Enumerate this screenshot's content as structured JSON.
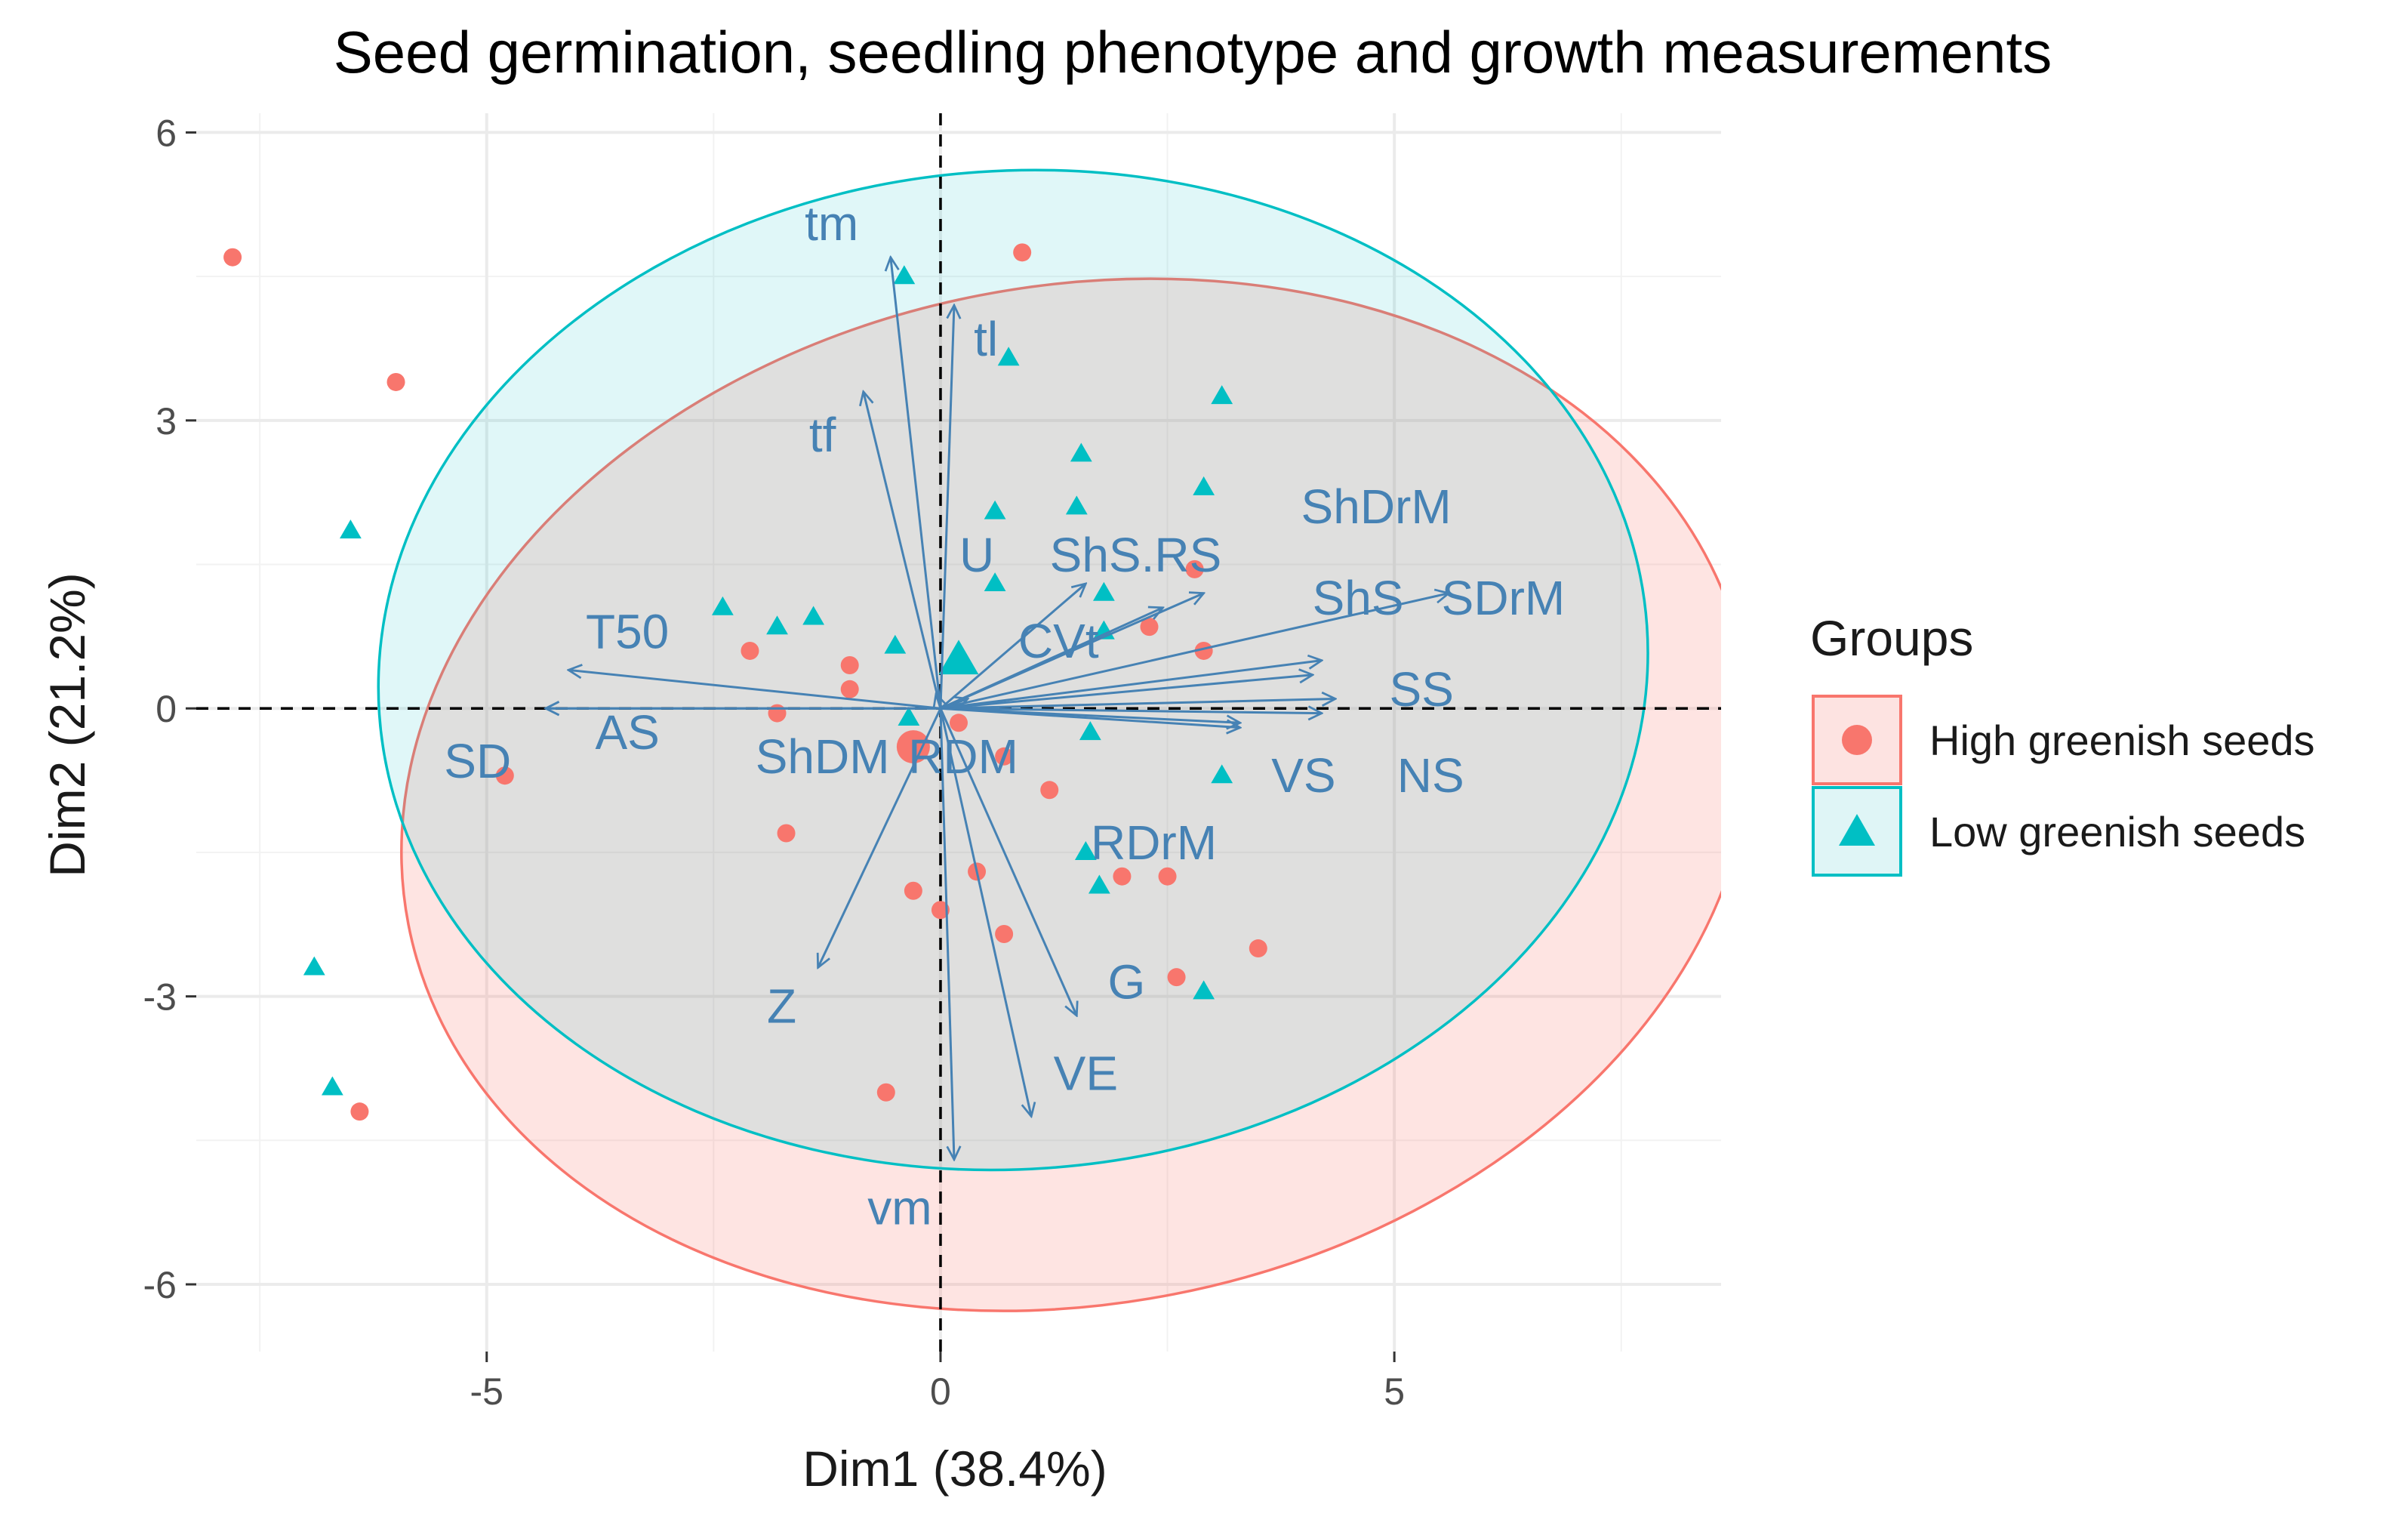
{
  "chart_data": {
    "type": "scatter",
    "subtype": "pca-biplot",
    "title": "Seed germination, seedling phenotype and growth measurements",
    "xlabel": "Dim1 (38.4%)",
    "ylabel": "Dim2 (21.2%)",
    "xlim": [
      -8.2,
      8.6
    ],
    "ylim": [
      -6.7,
      6.2
    ],
    "xticks": [
      -5,
      0,
      5
    ],
    "yticks": [
      -6,
      -3,
      0,
      3,
      6
    ],
    "xtick_labels": [
      "-5",
      "0",
      "5"
    ],
    "ytick_labels": [
      "-6",
      "-3",
      "0",
      "3",
      "6"
    ],
    "grid": true,
    "reference_lines": {
      "x": 0,
      "y": 0,
      "style": "dashed"
    },
    "legend": {
      "title": "Groups",
      "position": "right",
      "entries": [
        {
          "label": "High greenish seeds",
          "color": "#F8766D",
          "shape": "circle"
        },
        {
          "label": "Low greenish seeds",
          "color": "#00BFC4",
          "shape": "triangle"
        }
      ]
    },
    "series": [
      {
        "name": "High greenish seeds",
        "color": "#F8766D",
        "shape": "circle",
        "points": [
          [
            -7.8,
            4.7
          ],
          [
            -6.0,
            3.4
          ],
          [
            -4.8,
            -0.7
          ],
          [
            -6.4,
            -4.2
          ],
          [
            -2.1,
            0.6
          ],
          [
            -1.0,
            0.45
          ],
          [
            -1.0,
            0.2
          ],
          [
            -1.7,
            -1.3
          ],
          [
            -1.8,
            -0.05
          ],
          [
            -0.3,
            -0.4
          ],
          [
            0.9,
            4.75
          ],
          [
            0.2,
            -0.15
          ],
          [
            0.7,
            -0.5
          ],
          [
            1.2,
            -0.85
          ],
          [
            0.4,
            -1.7
          ],
          [
            -0.3,
            -1.9
          ],
          [
            0.0,
            -2.1
          ],
          [
            0.7,
            -2.35
          ],
          [
            -0.6,
            -4.0
          ],
          [
            2.0,
            -1.75
          ],
          [
            2.5,
            -1.75
          ],
          [
            2.6,
            -2.8
          ],
          [
            3.5,
            -2.5
          ],
          [
            2.8,
            1.45
          ],
          [
            2.3,
            0.85
          ],
          [
            2.9,
            0.6
          ]
        ],
        "centroid": [
          -0.3,
          -0.4
        ],
        "ellipse": {
          "center": [
            1.5,
            -0.9
          ],
          "rx": 7.5,
          "ry": 5.3,
          "rotation_deg": -11
        }
      },
      {
        "name": "Low greenish seeds",
        "color": "#00BFC4",
        "shape": "triangle",
        "points": [
          [
            -6.5,
            1.85
          ],
          [
            -6.9,
            -2.7
          ],
          [
            -6.7,
            -3.95
          ],
          [
            -2.4,
            1.05
          ],
          [
            -1.8,
            0.85
          ],
          [
            -1.4,
            0.95
          ],
          [
            -0.5,
            0.65
          ],
          [
            -0.4,
            4.5
          ],
          [
            0.6,
            2.05
          ],
          [
            0.6,
            1.3
          ],
          [
            0.75,
            3.65
          ],
          [
            1.55,
            2.65
          ],
          [
            1.5,
            2.1
          ],
          [
            1.8,
            1.2
          ],
          [
            1.8,
            0.8
          ],
          [
            3.1,
            3.25
          ],
          [
            2.9,
            2.3
          ],
          [
            1.6,
            -1.5
          ],
          [
            1.65,
            -0.25
          ],
          [
            1.75,
            -1.85
          ],
          [
            2.9,
            -2.95
          ],
          [
            3.1,
            -0.7
          ],
          [
            -0.35,
            -0.1
          ]
        ],
        "centroid": [
          0.2,
          0.5
        ],
        "ellipse": {
          "center": [
            0.8,
            0.4
          ],
          "rx": 7.0,
          "ry": 5.2,
          "rotation_deg": -4
        }
      }
    ],
    "variables": [
      {
        "name": "tm",
        "x": -0.55,
        "y": 4.7,
        "label_at": [
          -1.2,
          5.05
        ]
      },
      {
        "name": "tl",
        "x": 0.15,
        "y": 4.2,
        "label_at": [
          0.5,
          3.85
        ]
      },
      {
        "name": "tf",
        "x": -0.85,
        "y": 3.3,
        "label_at": [
          -1.3,
          2.85
        ]
      },
      {
        "name": "U",
        "x": 1.6,
        "y": 1.3,
        "label_at": [
          0.4,
          1.6
        ]
      },
      {
        "name": "ShS.RS",
        "x": 2.9,
        "y": 1.2,
        "label_at": [
          2.15,
          1.6
        ]
      },
      {
        "name": "CVt",
        "x": 2.45,
        "y": 1.05,
        "label_at": [
          1.3,
          0.7
        ]
      },
      {
        "name": "ShDrM",
        "x": 4.2,
        "y": 0.5,
        "label_at": [
          4.8,
          2.1
        ]
      },
      {
        "name": "ShS",
        "x": 4.1,
        "y": 0.35,
        "label_at": [
          4.6,
          1.15
        ]
      },
      {
        "name": "SDrM",
        "x": 5.6,
        "y": 1.2,
        "label_at": [
          6.2,
          1.15
        ]
      },
      {
        "name": "SS",
        "x": 4.35,
        "y": 0.1,
        "label_at": [
          5.3,
          0.2
        ]
      },
      {
        "name": "NS",
        "x": 4.2,
        "y": -0.05,
        "label_at": [
          5.4,
          -0.7
        ]
      },
      {
        "name": "VS",
        "x": 3.3,
        "y": -0.2,
        "label_at": [
          4.0,
          -0.7
        ]
      },
      {
        "name": "RDrM",
        "x": 3.3,
        "y": -0.15,
        "label_at": [
          2.35,
          -1.4
        ]
      },
      {
        "name": "RDM",
        "x": 0.3,
        "y": 0.1,
        "label_at": [
          0.25,
          -0.5
        ]
      },
      {
        "name": "ShDM",
        "x": -0.05,
        "y": 0.15,
        "label_at": [
          -1.3,
          -0.5
        ]
      },
      {
        "name": "G",
        "x": 1.5,
        "y": -3.2,
        "label_at": [
          2.05,
          -2.85
        ]
      },
      {
        "name": "VE",
        "x": 1.0,
        "y": -4.25,
        "label_at": [
          1.6,
          -3.8
        ]
      },
      {
        "name": "vm",
        "x": 0.15,
        "y": -4.7,
        "label_at": [
          -0.45,
          -5.2
        ]
      },
      {
        "name": "Z",
        "x": -1.35,
        "y": -2.7,
        "label_at": [
          -1.75,
          -3.1
        ]
      },
      {
        "name": "T50",
        "x": -4.1,
        "y": 0.4,
        "label_at": [
          -3.45,
          0.8
        ]
      },
      {
        "name": "AS",
        "x": -4.35,
        "y": 0.0,
        "label_at": [
          -3.45,
          -0.25
        ]
      },
      {
        "name": "SD",
        "x": -4.35,
        "y": 0.0,
        "label_at": [
          -5.1,
          -0.55
        ]
      }
    ]
  }
}
